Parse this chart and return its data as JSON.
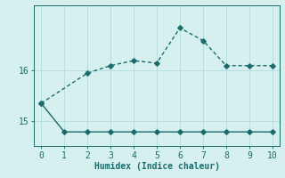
{
  "line1_x": [
    0,
    2,
    3,
    4,
    5,
    6,
    7,
    8,
    9,
    10
  ],
  "line1_y": [
    15.35,
    15.95,
    16.1,
    16.2,
    16.15,
    16.85,
    16.6,
    16.1,
    16.1,
    16.1
  ],
  "line2_x": [
    0,
    1,
    2,
    3,
    4,
    5,
    6,
    7,
    8,
    9,
    10
  ],
  "line2_y": [
    15.35,
    14.78,
    14.78,
    14.78,
    14.78,
    14.78,
    14.78,
    14.78,
    14.78,
    14.78,
    14.78
  ],
  "line_color": "#1a6b6b",
  "bg_color": "#d6f0f0",
  "grid_color": "#b8dede",
  "xlabel": "Humidex (Indice chaleur)",
  "xlim": [
    -0.3,
    10.3
  ],
  "ylim": [
    14.5,
    17.3
  ],
  "yticks": [
    15,
    16
  ],
  "xticks": [
    0,
    1,
    2,
    3,
    4,
    5,
    6,
    7,
    8,
    9,
    10
  ],
  "marker": "D",
  "markersize": 2.8,
  "linewidth": 1.0
}
